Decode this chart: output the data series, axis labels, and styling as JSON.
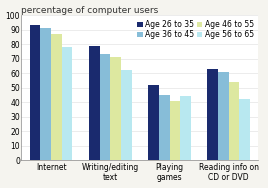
{
  "title": "percentage of computer users",
  "categories": [
    "Internet",
    "Writing/editing\ntext",
    "Playing\ngames",
    "Reading info on\nCD or DVD"
  ],
  "legend_labels": [
    "Age 26 to 35",
    "Age 36 to 45",
    "Age 46 to 55",
    "Age 56 to 65"
  ],
  "bar_colors": [
    "#1a2a6e",
    "#87bdd8",
    "#dde8a0",
    "#b8e8f0"
  ],
  "values": [
    [
      93,
      91,
      87,
      78
    ],
    [
      79,
      73,
      71,
      62
    ],
    [
      52,
      45,
      41,
      44
    ],
    [
      63,
      61,
      54,
      42
    ]
  ],
  "ylim": [
    0,
    100
  ],
  "yticks": [
    0,
    10,
    20,
    30,
    40,
    50,
    60,
    70,
    80,
    90,
    100
  ],
  "title_fontsize": 6.5,
  "tick_fontsize": 5.5,
  "legend_fontsize": 5.5,
  "bg_color": "#f5f4ef",
  "plot_bg": "#ffffff"
}
